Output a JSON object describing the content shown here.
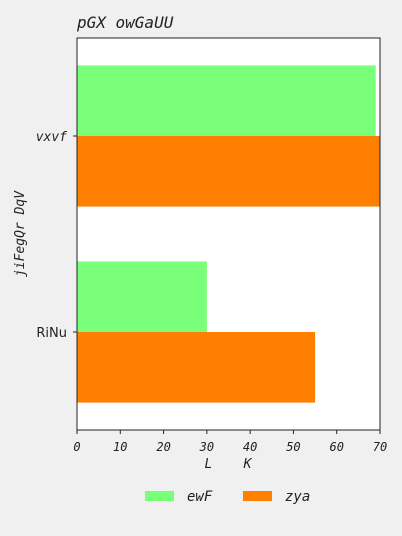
{
  "chart_data": {
    "type": "bar",
    "orientation": "horizontal",
    "title": "pGX owGaUU",
    "xlabel": "L K",
    "ylabel": "jiFegQr DqV",
    "categories": [
      "vxvf",
      "RiNu"
    ],
    "series": [
      {
        "name": "ewF",
        "values": [
          69,
          30
        ],
        "color": "#79ff79"
      },
      {
        "name": "zya",
        "values": [
          70,
          55
        ],
        "color": "#ff7f00"
      }
    ],
    "xlim": [
      0,
      70
    ],
    "xticks": [
      0,
      10,
      20,
      30,
      40,
      50,
      60,
      70
    ],
    "grid": false,
    "legend_position": "bottom"
  }
}
